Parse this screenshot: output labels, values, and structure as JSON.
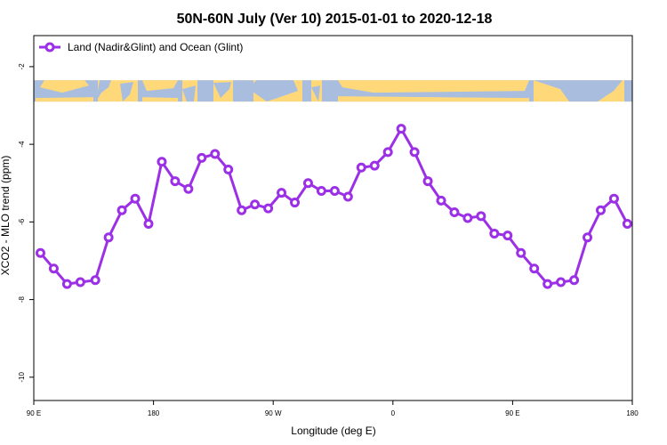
{
  "chart_data": {
    "type": "line",
    "title": "50N-60N July (Ver 10)   2015-01-01 to 2020-12-18",
    "xlabel": "Longitude (deg E)",
    "ylabel": "XCO2 - MLO trend (ppm)",
    "xlim": [
      90,
      450
    ],
    "ylim": [
      -10.6,
      -1.2
    ],
    "x_ticks": [
      {
        "value": 90,
        "label": "90 E"
      },
      {
        "value": 162,
        "label": "180"
      },
      {
        "value": 234,
        "label": "90 W"
      },
      {
        "value": 306,
        "label": "0"
      },
      {
        "value": 378,
        "label": "90 E"
      },
      {
        "value": 450,
        "label": "180"
      }
    ],
    "y_ticks": [
      {
        "value": -2,
        "label": "-2"
      },
      {
        "value": -4,
        "label": "-4"
      },
      {
        "value": -6,
        "label": "-6"
      },
      {
        "value": -8,
        "label": "-8"
      },
      {
        "value": -10,
        "label": "-10"
      }
    ],
    "legend_position": "top-left",
    "grid": false,
    "map_band": {
      "y_top": -2.35,
      "y_bottom": -2.9,
      "land_color": "#ffd87a",
      "ocean_color": "#a9bedf"
    },
    "series": [
      {
        "name": "Land (Nadir&Glint) and Ocean (Glint)",
        "color": "#9b30e6",
        "x": [
          94,
          102,
          110,
          118,
          127,
          135,
          143,
          151,
          159,
          167,
          175,
          183,
          191,
          199,
          207,
          215,
          223,
          231,
          239,
          247,
          255,
          263,
          271,
          279,
          287,
          295,
          303,
          311,
          319,
          327,
          335,
          343,
          351,
          359,
          367,
          375,
          383,
          391,
          399,
          407,
          415,
          423,
          431,
          439,
          447
        ],
        "y": [
          -6.8,
          -7.2,
          -7.6,
          -7.55,
          -7.5,
          -6.4,
          -5.7,
          -5.4,
          -6.05,
          -4.45,
          -4.95,
          -5.15,
          -4.35,
          -4.25,
          -4.65,
          -5.7,
          -5.55,
          -5.65,
          -5.25,
          -5.5,
          -5.0,
          -5.2,
          -5.2,
          -5.35,
          -4.6,
          -4.55,
          -4.2,
          -3.6,
          -4.2,
          -4.95,
          -5.45,
          -5.75,
          -5.9,
          -5.85,
          -6.3,
          -6.35,
          -6.8,
          -7.2,
          -7.6,
          -7.55,
          -7.5,
          -6.4,
          -5.7,
          -5.4,
          -6.05
        ]
      }
    ]
  }
}
